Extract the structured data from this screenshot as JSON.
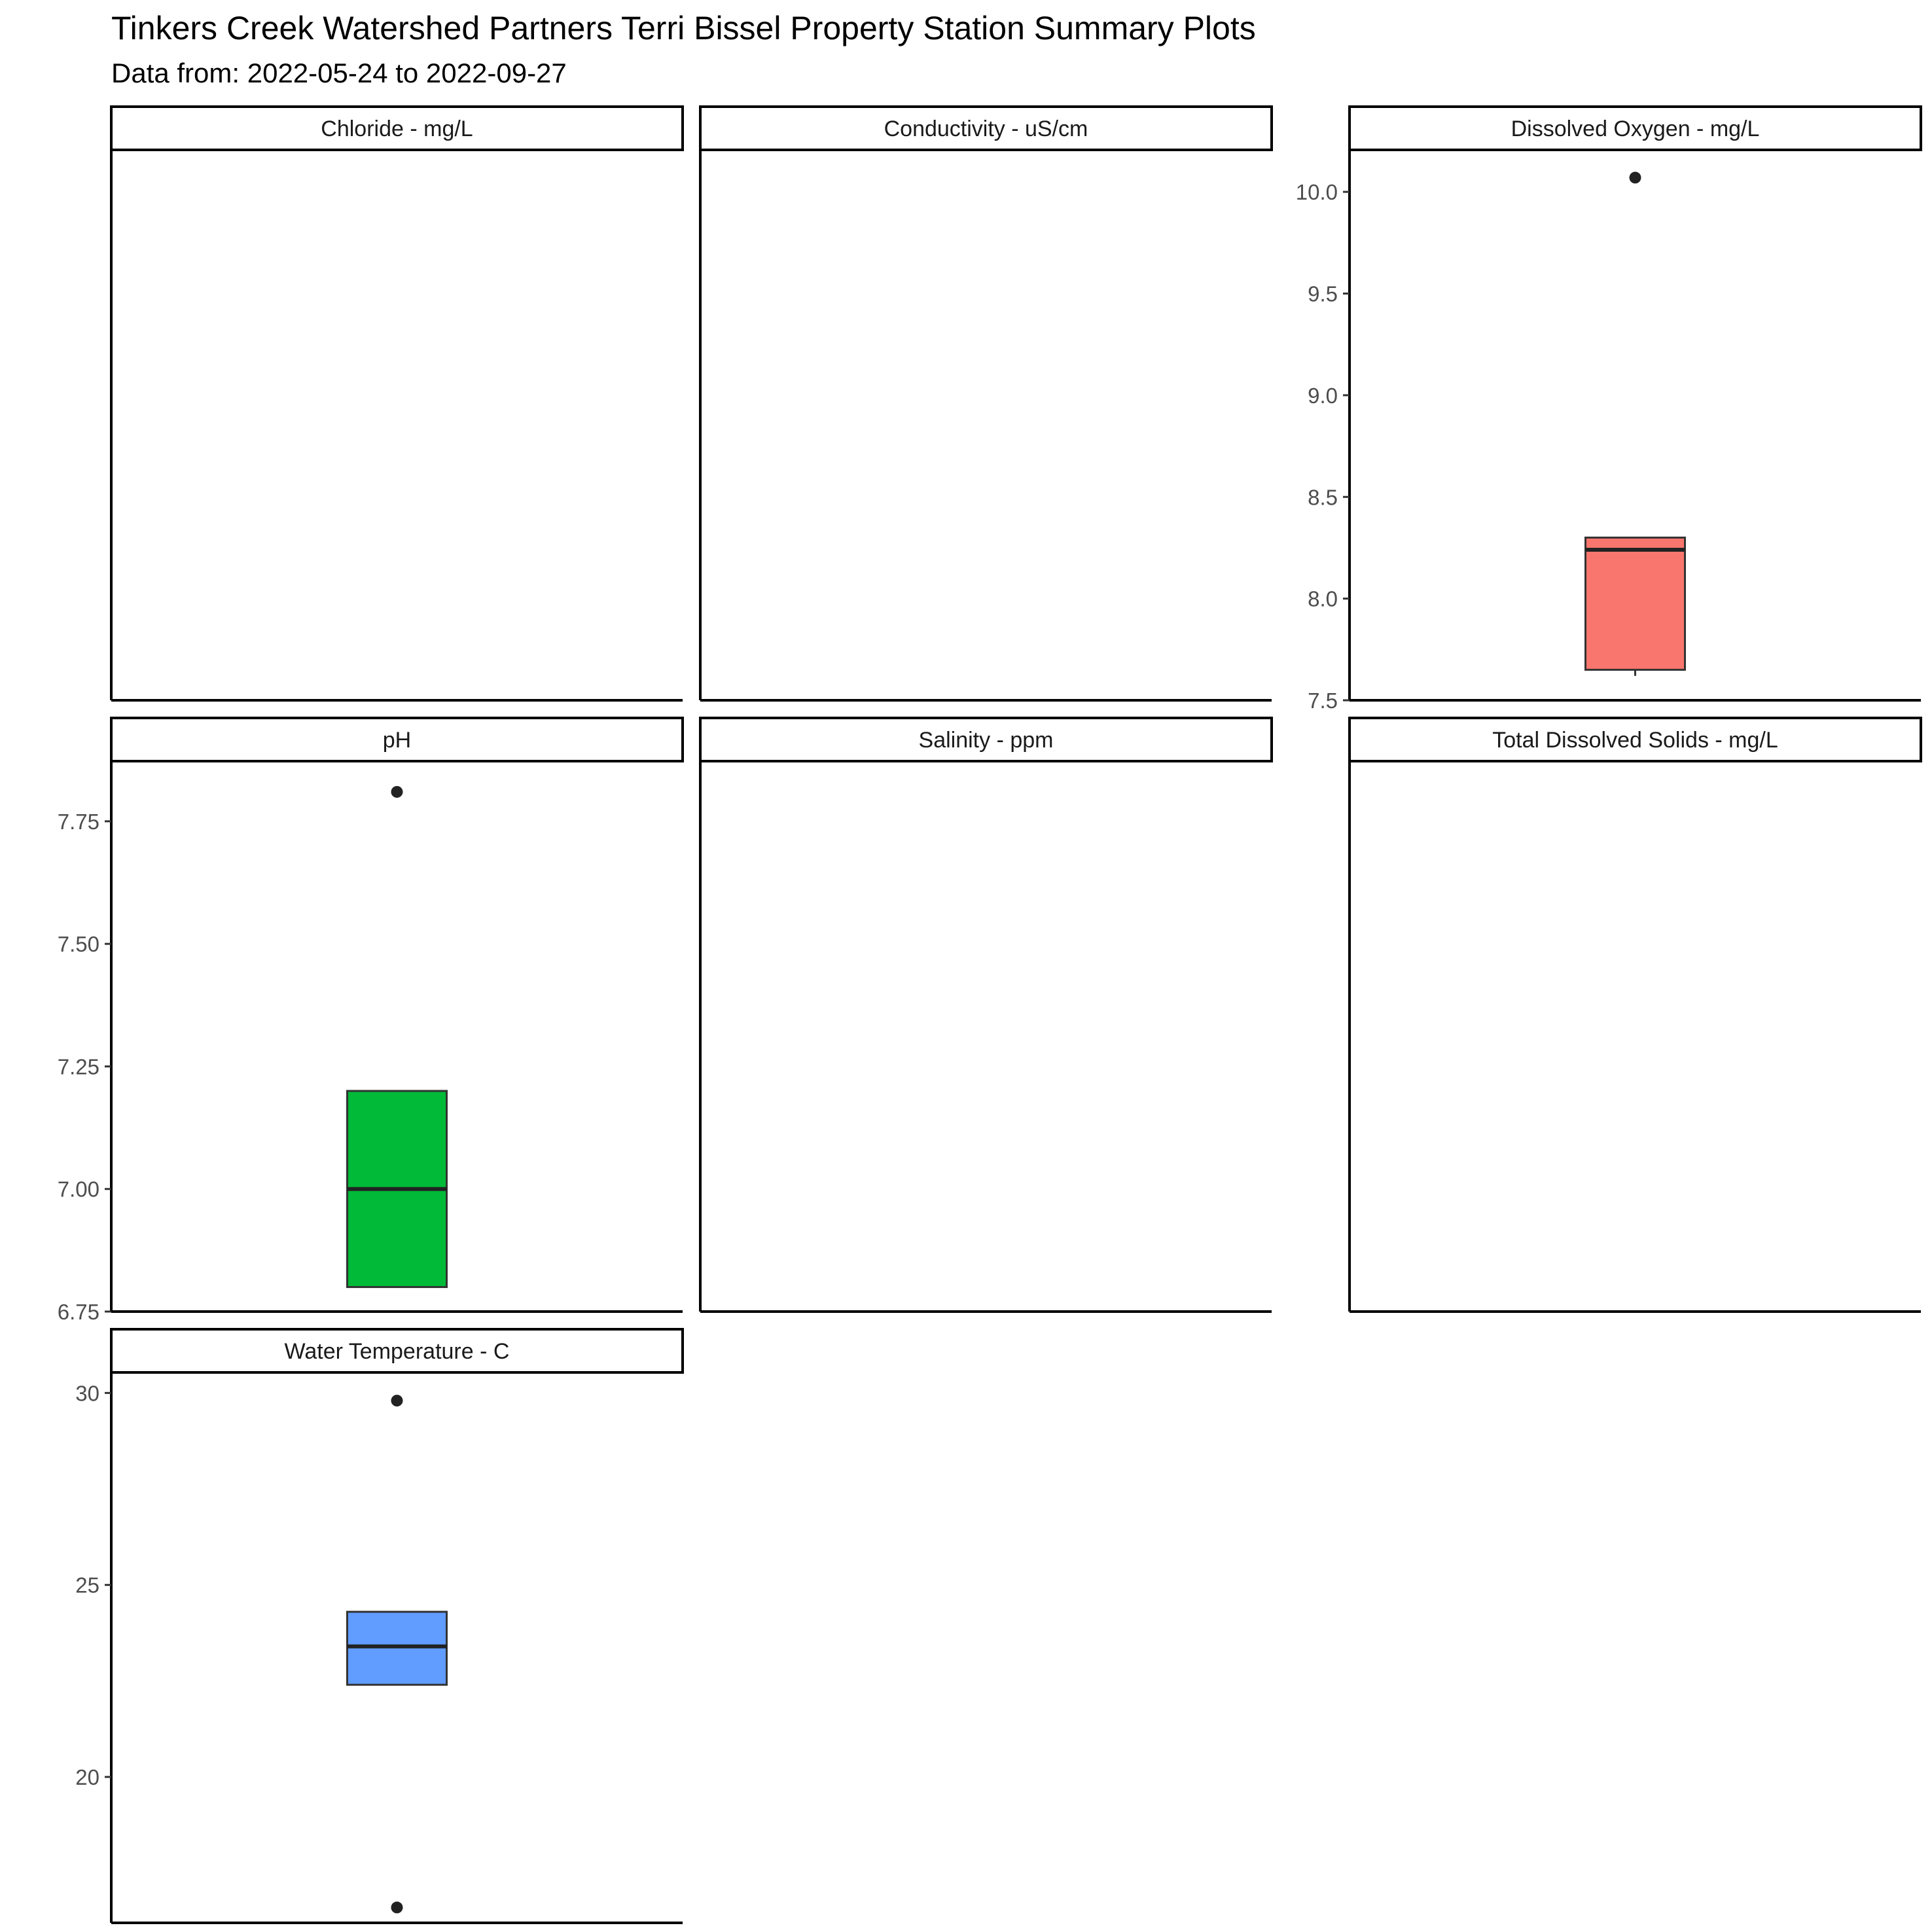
{
  "title": "Tinkers Creek Watershed Partners Terri Bissel Property Station Summary Plots",
  "subtitle": "Data from: 2022-05-24 to 2022-09-27",
  "chart_data": {
    "type": "boxplot",
    "facet_layout": "3 columns x 3 rows",
    "grid": false,
    "legend": "none",
    "panels": [
      {
        "label": "Chloride - mg/L",
        "has_data": false
      },
      {
        "label": "Conductivity - uS/cm",
        "has_data": false
      },
      {
        "label": "Dissolved Oxygen - mg/L",
        "has_data": true,
        "color": "#F8766D",
        "ylim": [
          7.5,
          10.2
        ],
        "ticks": [
          7.5,
          8.0,
          8.5,
          9.0,
          9.5,
          10.0
        ],
        "tick_labels": [
          "7.5",
          "8.0",
          "8.5",
          "9.0",
          "9.5",
          "10.0"
        ],
        "box": {
          "lower_whisker": 7.62,
          "q1": 7.65,
          "median": 8.24,
          "q3": 8.3,
          "upper_whisker": 8.3
        },
        "outliers": [
          10.07
        ]
      },
      {
        "label": "pH",
        "has_data": true,
        "color": "#00BA38",
        "ylim": [
          6.75,
          7.87
        ],
        "ticks": [
          6.75,
          7.0,
          7.25,
          7.5,
          7.75
        ],
        "tick_labels": [
          "6.75",
          "7.00",
          "7.25",
          "7.50",
          "7.75"
        ],
        "box": {
          "lower_whisker": 6.8,
          "q1": 6.8,
          "median": 7.0,
          "q3": 7.2,
          "upper_whisker": 7.2
        },
        "outliers": [
          7.81
        ]
      },
      {
        "label": "Salinity - ppm",
        "has_data": false
      },
      {
        "label": "Total Dissolved Solids - mg/L",
        "has_data": false
      },
      {
        "label": "Water Temperature - C",
        "has_data": true,
        "color": "#619CFF",
        "ylim": [
          16.2,
          30.5
        ],
        "ticks": [
          20,
          25,
          30
        ],
        "tick_labels": [
          "20",
          "25",
          "30"
        ],
        "box": {
          "lower_whisker": 22.4,
          "q1": 22.4,
          "median": 23.4,
          "q3": 24.3,
          "upper_whisker": 24.3
        },
        "outliers": [
          29.8,
          16.6
        ]
      }
    ]
  }
}
